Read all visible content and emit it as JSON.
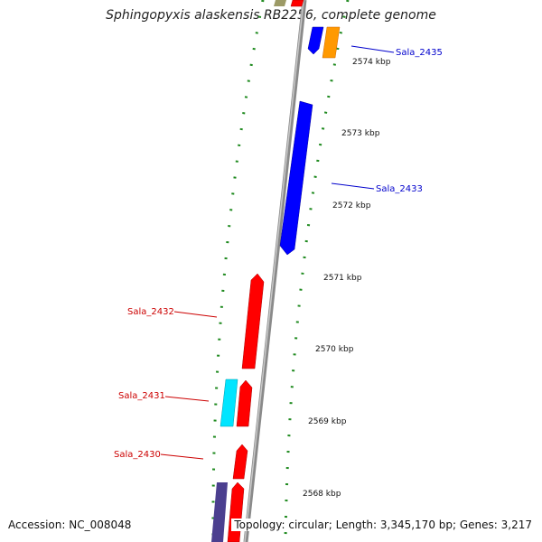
{
  "title": "Sphingopyxis alaskensis RB2256, complete genome",
  "accession": "Accession: NC_008048",
  "topology": "Topology: circular; Length: 3,345,170 bp; Genes: 3,217",
  "ticks": [
    "2574 kbp",
    "2573 kbp",
    "2572 kbp",
    "2571 kbp",
    "2570 kbp",
    "2569 kbp",
    "2568 kbp"
  ],
  "genes": [
    {
      "label": "Sala_2435",
      "strand": "forward",
      "color": "#0000cc"
    },
    {
      "label": "Sala_2433",
      "strand": "forward",
      "color": "#0000cc"
    },
    {
      "label": "Sala_2432",
      "strand": "reverse",
      "color": "#cc0000"
    },
    {
      "label": "Sala_2431",
      "strand": "reverse",
      "color": "#cc0000"
    },
    {
      "label": "Sala_2430",
      "strand": "reverse",
      "color": "#cc0000"
    }
  ],
  "colors": {
    "backbone": "#8a8a8a",
    "tick_green": "#1f8a1f",
    "forward_feature": "#0000ff",
    "reverse_feature": "#ff0000",
    "cyan_feature": "#00e5ff",
    "orange_feature": "#ff9900",
    "purple_feature": "#4b3f8f",
    "olive_feature": "#9c9a66"
  }
}
